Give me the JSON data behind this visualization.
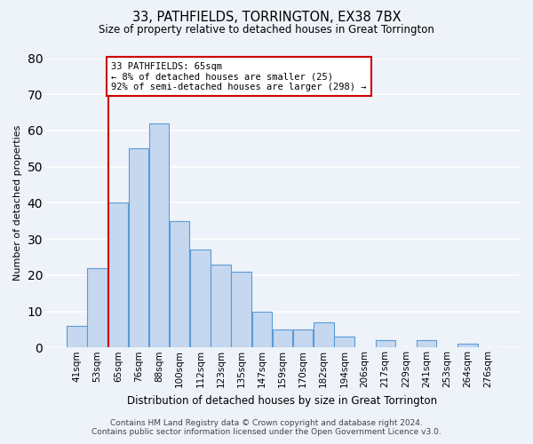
{
  "title": "33, PATHFIELDS, TORRINGTON, EX38 7BX",
  "subtitle": "Size of property relative to detached houses in Great Torrington",
  "xlabel": "Distribution of detached houses by size in Great Torrington",
  "ylabel": "Number of detached properties",
  "bin_labels": [
    "41sqm",
    "53sqm",
    "65sqm",
    "76sqm",
    "88sqm",
    "100sqm",
    "112sqm",
    "123sqm",
    "135sqm",
    "147sqm",
    "159sqm",
    "170sqm",
    "182sqm",
    "194sqm",
    "206sqm",
    "217sqm",
    "229sqm",
    "241sqm",
    "253sqm",
    "264sqm",
    "276sqm"
  ],
  "bar_values": [
    6,
    22,
    40,
    55,
    62,
    35,
    27,
    23,
    21,
    10,
    5,
    5,
    7,
    3,
    0,
    2,
    0,
    2,
    0,
    1,
    0
  ],
  "bar_color": "#c5d8f0",
  "bar_edge_color": "#5b9bd5",
  "vline_index": 2,
  "vline_color": "#cc0000",
  "annotation_line1": "33 PATHFIELDS: 65sqm",
  "annotation_line2": "← 8% of detached houses are smaller (25)",
  "annotation_line3": "92% of semi-detached houses are larger (298) →",
  "annotation_box_color": "#cc0000",
  "ylim": [
    0,
    80
  ],
  "yticks": [
    0,
    10,
    20,
    30,
    40,
    50,
    60,
    70,
    80
  ],
  "footer_line1": "Contains HM Land Registry data © Crown copyright and database right 2024.",
  "footer_line2": "Contains public sector information licensed under the Open Government Licence v3.0.",
  "bg_color": "#eef2f9",
  "grid_color": "#ffffff",
  "title_fontsize": 10.5,
  "subtitle_fontsize": 8.5,
  "xlabel_fontsize": 8.5,
  "ylabel_fontsize": 8.0,
  "tick_fontsize": 7.5,
  "annotation_fontsize": 7.5,
  "footer_fontsize": 6.5
}
